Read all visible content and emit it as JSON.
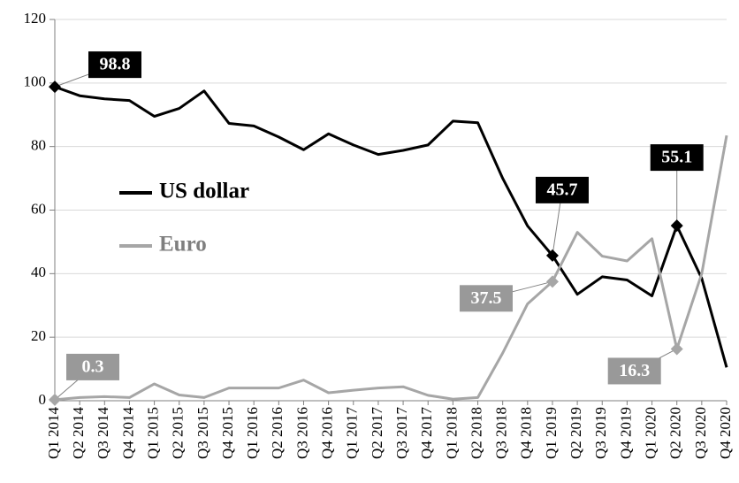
{
  "chart_data": {
    "type": "line",
    "categories": [
      "Q1 2014",
      "Q2 2014",
      "Q3 2014",
      "Q4 2014",
      "Q1 2015",
      "Q2 2015",
      "Q3 2015",
      "Q4 2015",
      "Q1 2016",
      "Q2 2016",
      "Q3 2016",
      "Q4 2016",
      "Q1 2017",
      "Q2 2017",
      "Q3 2017",
      "Q4 2017",
      "Q1 2018",
      "Q2 2018",
      "Q3 2018",
      "Q4 2018",
      "Q1 2019",
      "Q2 2019",
      "Q3 2019",
      "Q4 2019",
      "Q1 2020",
      "Q2 2020",
      "Q3 2020",
      "Q4 2020"
    ],
    "series": [
      {
        "name": "US dollar",
        "color": "#000000",
        "labeled": [
          0,
          20,
          25
        ],
        "values": [
          98.8,
          96,
          95,
          94.5,
          89.5,
          92,
          97.5,
          87.3,
          86.5,
          83,
          79,
          84,
          80.5,
          77.5,
          78.8,
          80.5,
          88,
          87.5,
          70,
          55,
          45.7,
          33.5,
          39,
          38,
          33,
          55.1,
          38.5,
          10.5
        ]
      },
      {
        "name": "Euro",
        "color": "#a6a6a6",
        "labeled": [
          0,
          20,
          25
        ],
        "values": [
          0.3,
          1,
          1.3,
          1,
          5.3,
          1.8,
          1,
          4,
          4,
          4,
          6.5,
          2.5,
          3.3,
          4,
          4.4,
          1.7,
          0.5,
          1,
          15,
          30.5,
          37.5,
          53,
          45.5,
          44,
          51,
          16.3,
          40,
          83.5
        ]
      }
    ],
    "ylim": [
      0,
      120
    ],
    "yticks": [
      0,
      20,
      40,
      60,
      80,
      100,
      120
    ],
    "grid": true
  }
}
